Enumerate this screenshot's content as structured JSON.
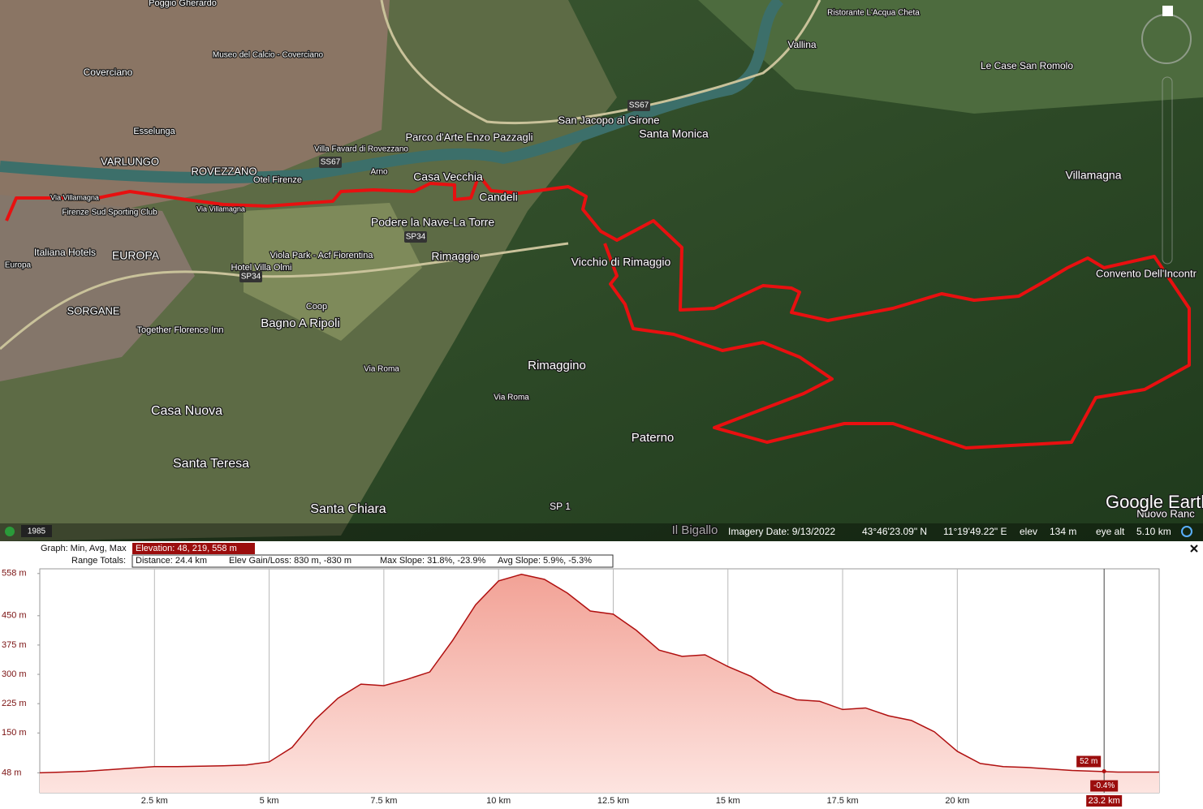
{
  "map": {
    "labels": [
      "Poggio Gherardo",
      "Museo del Calcio - Coverciano",
      "Coverciano",
      "Esselunga",
      "VARLUNGO",
      "ROVEZZANO",
      "Otel Firenze",
      "Villa Favard di Rovezzano",
      "Parco d'Arte Enzo Pazzagli",
      "San Jacopo al Girone",
      "Santa Monica",
      "Casa Vecchia",
      "Candeli",
      "Podere la Nave-La Torre",
      "Via Villamagna",
      "Firenze Sud Sporting Club",
      "Italiana Hotels",
      "EUROPA",
      "Viola Park - Acf Fiorentina",
      "Hotel Villa Olmi",
      "Rimaggio",
      "Vicchio di Rimaggio",
      "SORGANE",
      "Coop",
      "Bagno A Ripoli",
      "Together Florence Inn",
      "Via Roma",
      "Rimaggino",
      "Casa Nuova",
      "Paterno",
      "Santa Teresa",
      "Santa Chiara",
      "SP 1",
      "Il Bigallo",
      "Villamagna",
      "Le Case San Romolo",
      "Vallina",
      "Ristorante L'Acqua Cheta",
      "Convento Dell'Incontr",
      "Nuovo Ranc",
      "Arno",
      "Europa",
      "Via Villamagna",
      "Via Roma"
    ],
    "shields": [
      "SS67",
      "SS67",
      "SP34",
      "SP34"
    ],
    "logo": "Google Earth",
    "year": "1985",
    "status": {
      "imagery_date": "Imagery Date: 9/13/2022",
      "lat": "43°46'23.09\" N",
      "lon": "11°19'49.22\" E",
      "elev_label": "elev",
      "elev": "134 m",
      "eye_alt_label": "eye alt",
      "eye_alt": "5.10 km"
    }
  },
  "profile": {
    "graph_label": "Graph: Min, Avg, Max",
    "elevation": "Elevation: 48, 219, 558 m",
    "range_label": "Range Totals:",
    "distance": "Distance: 24.4 km",
    "elev_gain_loss": "Elev Gain/Loss: 830 m, -830 m",
    "max_slope": "Max Slope: 31.8%, -23.9%",
    "avg_slope": "Avg Slope: 5.9%, -5.3%",
    "chart": {
      "type": "area",
      "color": "#b01010",
      "x": [
        0,
        0.5,
        1,
        1.5,
        2,
        2.5,
        3,
        3.5,
        4,
        4.5,
        5,
        5.5,
        6,
        6.5,
        7,
        7.5,
        8,
        8.5,
        9,
        9.5,
        10,
        10.5,
        11,
        11.5,
        12,
        12.5,
        13,
        13.5,
        14,
        14.5,
        15,
        15.5,
        16,
        16.5,
        17,
        17.5,
        18,
        18.5,
        19,
        19.5,
        20,
        20.5,
        21,
        21.5,
        22,
        22.5,
        23,
        23.5,
        24,
        24.4
      ],
      "values": [
        48,
        50,
        52,
        56,
        60,
        64,
        64,
        65,
        66,
        68,
        76,
        113,
        184,
        239,
        275,
        271,
        287,
        306,
        387,
        478,
        539,
        556,
        543,
        508,
        462,
        454,
        413,
        362,
        346,
        350,
        320,
        295,
        255,
        235,
        231,
        210,
        214,
        194,
        182,
        153,
        103,
        72,
        64,
        62,
        58,
        54,
        52,
        50,
        50,
        50
      ],
      "xlim": [
        0,
        24.4
      ],
      "ylim": [
        -3,
        570
      ],
      "xticks": [
        {
          "value": 2.5,
          "label": "2.5 km"
        },
        {
          "value": 5,
          "label": "5 km"
        },
        {
          "value": 7.5,
          "label": "7.5 km"
        },
        {
          "value": 10,
          "label": "10 km"
        },
        {
          "value": 12.5,
          "label": "12.5 km"
        },
        {
          "value": 15,
          "label": "15 km"
        },
        {
          "value": 17.5,
          "label": "17.5 km"
        },
        {
          "value": 20,
          "label": "20 km"
        }
      ],
      "yticks": [
        {
          "value": 48,
          "label": "48 m"
        },
        {
          "value": 150,
          "label": "150 m"
        },
        {
          "value": 225,
          "label": "225 m"
        },
        {
          "value": 300,
          "label": "300 m"
        },
        {
          "value": 375,
          "label": "375 m"
        },
        {
          "value": 450,
          "label": "450 m"
        },
        {
          "value": 558,
          "label": "558 m"
        }
      ]
    },
    "cursor": {
      "x": 23.2,
      "x_label": "23.2 km",
      "elevation": 52,
      "elevation_label": "52 m",
      "slope": -0.4,
      "slope_label": "-0.4%"
    }
  }
}
